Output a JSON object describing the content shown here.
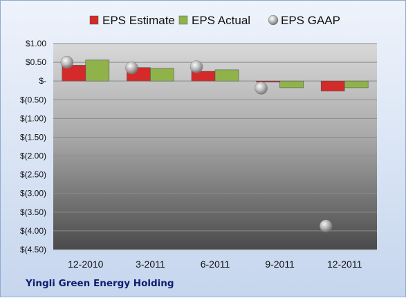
{
  "chart_data": {
    "type": "bar",
    "title": "",
    "xlabel": "",
    "ylabel": "",
    "categories": [
      "12-2010",
      "3-2011",
      "6-2011",
      "9-2011",
      "12-2011"
    ],
    "series": [
      {
        "name": "EPS Estimate",
        "kind": "bar",
        "color": "#d42a2a",
        "values": [
          0.42,
          0.36,
          0.26,
          -0.03,
          -0.27
        ]
      },
      {
        "name": "EPS Actual",
        "kind": "bar",
        "color": "#8fb34a",
        "values": [
          0.56,
          0.34,
          0.3,
          -0.18,
          -0.18
        ]
      },
      {
        "name": "EPS GAAP",
        "kind": "marker",
        "color": "#a8a8a8",
        "values": [
          0.5,
          0.35,
          0.38,
          -0.19,
          -3.87
        ]
      }
    ],
    "ylim": [
      -4.5,
      1.0
    ],
    "yticks": [
      1.0,
      0.5,
      0,
      -0.5,
      -1.0,
      -1.5,
      -2.0,
      -2.5,
      -3.0,
      -3.5,
      -4.0,
      -4.5
    ],
    "ytick_labels": [
      "$1.00",
      "$0.50",
      "$-",
      "$(0.50)",
      "$(1.00)",
      "$(1.50)",
      "$(2.00)",
      "$(2.50)",
      "$(3.00)",
      "$(3.50)",
      "$(4.00)",
      "$(4.50)"
    ],
    "grid": true,
    "legend_position": "top"
  },
  "company_label": "Yingli Green Energy Holding"
}
